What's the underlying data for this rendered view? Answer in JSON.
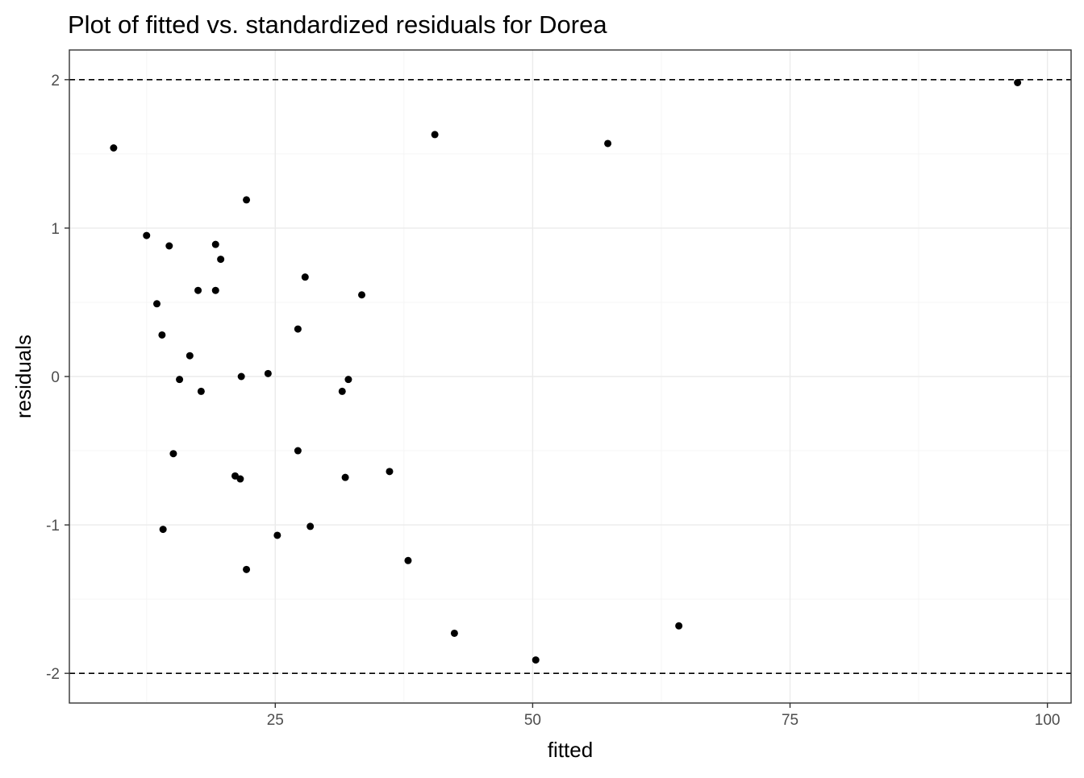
{
  "chart_data": {
    "type": "scatter",
    "title": "Plot of fitted vs. standardized residuals for Dorea",
    "xlabel": "fitted",
    "ylabel": "residuals",
    "xlim": [
      5,
      102.3
    ],
    "ylim": [
      -2.2,
      2.2
    ],
    "xticks": [
      25,
      50,
      75,
      100
    ],
    "xtick_labels": [
      "25",
      "50",
      "75",
      "100"
    ],
    "yticks": [
      -2,
      -1,
      0,
      1,
      2
    ],
    "ytick_labels": [
      "-2",
      "-1",
      "0",
      "1",
      "2"
    ],
    "reference_lines": [
      2,
      -2
    ],
    "grid": true,
    "colors": {
      "points": "#000000",
      "grid_major": "#ebebeb",
      "grid_minor": "#f5f5f5",
      "reference": "#000000",
      "border": "#333333"
    },
    "points": [
      {
        "x": 9.3,
        "y": 1.54
      },
      {
        "x": 12.5,
        "y": 0.95
      },
      {
        "x": 13.5,
        "y": 0.49
      },
      {
        "x": 14.0,
        "y": 0.28
      },
      {
        "x": 14.1,
        "y": -1.03
      },
      {
        "x": 14.7,
        "y": 0.88
      },
      {
        "x": 15.1,
        "y": -0.52
      },
      {
        "x": 15.7,
        "y": -0.02
      },
      {
        "x": 16.7,
        "y": 0.14
      },
      {
        "x": 17.5,
        "y": 0.58
      },
      {
        "x": 17.8,
        "y": -0.1
      },
      {
        "x": 19.2,
        "y": 0.89
      },
      {
        "x": 19.2,
        "y": 0.58
      },
      {
        "x": 19.7,
        "y": 0.79
      },
      {
        "x": 21.1,
        "y": -0.67
      },
      {
        "x": 21.6,
        "y": -0.69
      },
      {
        "x": 21.7,
        "y": 0.0
      },
      {
        "x": 22.2,
        "y": 1.19
      },
      {
        "x": 22.2,
        "y": -1.3
      },
      {
        "x": 24.3,
        "y": 0.02
      },
      {
        "x": 25.2,
        "y": -1.07
      },
      {
        "x": 27.2,
        "y": 0.32
      },
      {
        "x": 27.2,
        "y": -0.5
      },
      {
        "x": 27.9,
        "y": 0.67
      },
      {
        "x": 28.4,
        "y": -1.01
      },
      {
        "x": 31.5,
        "y": -0.1
      },
      {
        "x": 31.8,
        "y": -0.68
      },
      {
        "x": 32.1,
        "y": -0.02
      },
      {
        "x": 33.4,
        "y": 0.55
      },
      {
        "x": 36.1,
        "y": -0.64
      },
      {
        "x": 37.9,
        "y": -1.24
      },
      {
        "x": 40.5,
        "y": 1.63
      },
      {
        "x": 42.4,
        "y": -1.73
      },
      {
        "x": 50.3,
        "y": -1.91
      },
      {
        "x": 57.3,
        "y": 1.57
      },
      {
        "x": 64.2,
        "y": -1.68
      },
      {
        "x": 97.1,
        "y": 1.98
      }
    ]
  }
}
